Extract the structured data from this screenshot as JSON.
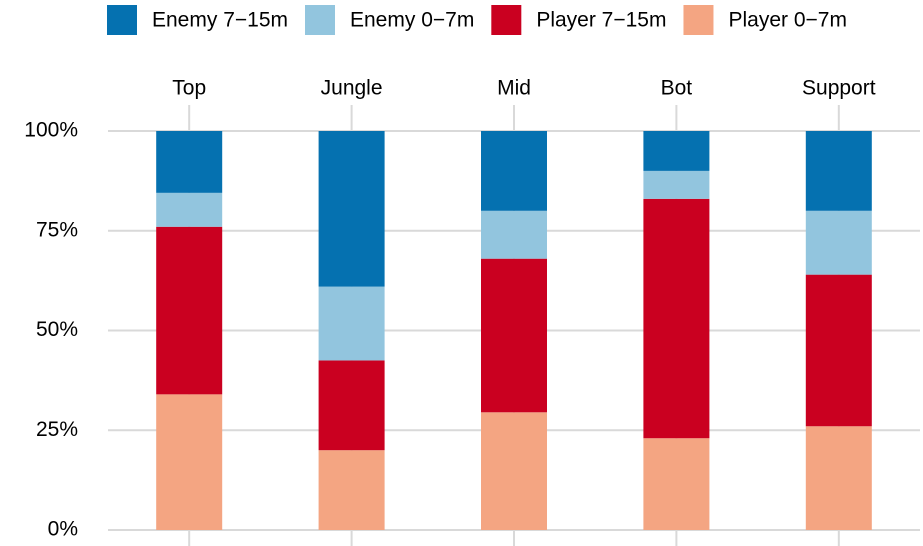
{
  "chart_data": {
    "type": "stacked_bar",
    "categories": [
      "Top",
      "Jungle",
      "Mid",
      "Bot",
      "Support"
    ],
    "series": [
      {
        "name": "Enemy 7−15m",
        "color": "#0571b0",
        "values": [
          15.5,
          39,
          20,
          10,
          20
        ]
      },
      {
        "name": "Enemy 0−7m",
        "color": "#92c5de",
        "values": [
          8.5,
          18.5,
          12,
          7,
          16
        ]
      },
      {
        "name": "Player 7−15m",
        "color": "#ca0020",
        "values": [
          42,
          22.5,
          38.5,
          60,
          38
        ]
      },
      {
        "name": "Player 0−7m",
        "color": "#f4a582",
        "values": [
          34,
          20,
          29.5,
          23,
          26
        ]
      }
    ],
    "ylim": [
      0,
      100
    ],
    "yticks": [
      {
        "value": 0,
        "label": "0%"
      },
      {
        "value": 25,
        "label": "25%"
      },
      {
        "value": 50,
        "label": "50%"
      },
      {
        "value": 75,
        "label": "75%"
      },
      {
        "value": 100,
        "label": "100%"
      }
    ],
    "grid": true,
    "legend": "top"
  }
}
